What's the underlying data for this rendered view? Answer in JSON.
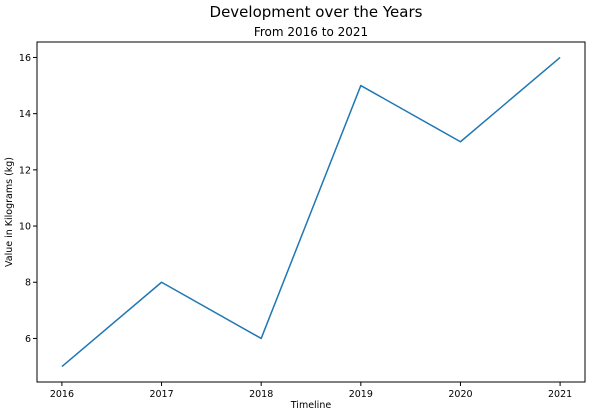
{
  "chart_data": {
    "type": "line",
    "title": "Development over the Years",
    "subtitle": "From 2016 to 2021",
    "xlabel": "Timeline",
    "ylabel": "Value in Kilograms (kg)",
    "x": [
      2016,
      2017,
      2018,
      2019,
      2020,
      2021
    ],
    "x_tick_labels": [
      "2016",
      "2017",
      "2018",
      "2019",
      "2020",
      "2021"
    ],
    "y_ticks": [
      6,
      8,
      10,
      12,
      14,
      16
    ],
    "y_tick_labels": [
      "6",
      "8",
      "10",
      "12",
      "14",
      "16"
    ],
    "xlim": [
      2015.75,
      2021.25
    ],
    "ylim": [
      4.45,
      16.55
    ],
    "grid": false,
    "series": [
      {
        "values": [
          5,
          8,
          6,
          15,
          13,
          16
        ],
        "color": "#1f77b4"
      }
    ]
  }
}
